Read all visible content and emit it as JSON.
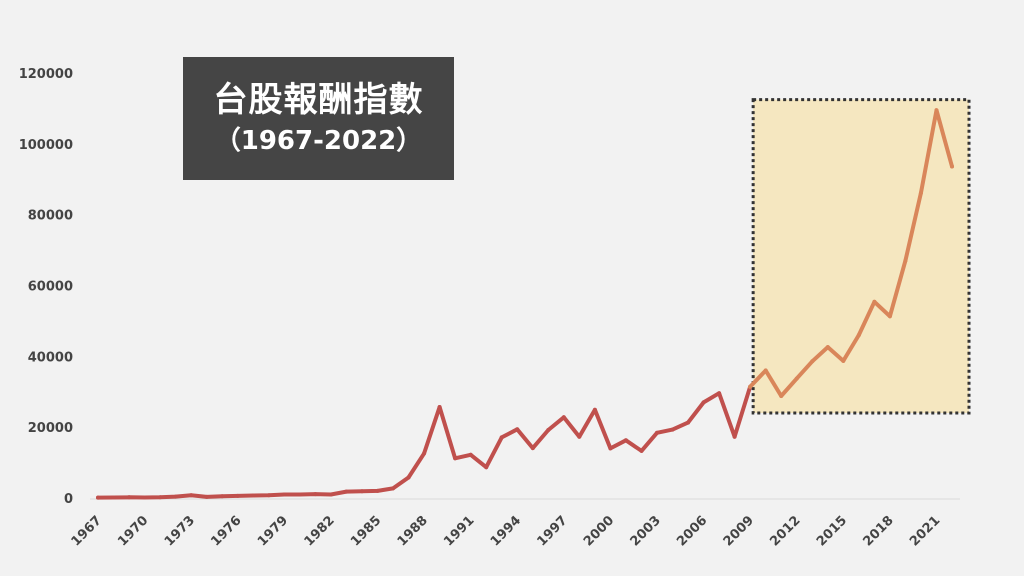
{
  "colors": {
    "background": "#f2f2f2",
    "title_box": "#454545",
    "line_main": "#c0504d",
    "line_highlight": "#d9865a",
    "highlight_fill": "#f5e7c0",
    "highlight_border": "#333333",
    "baseline": "#d9d9d9"
  },
  "chart_data": {
    "type": "line",
    "title": "台股報酬指數",
    "subtitle": "（1967-2022）",
    "xlabel": "",
    "ylabel": "",
    "ylim": [
      0,
      120000
    ],
    "yticks": [
      "0",
      "20000",
      "40000",
      "60000",
      "80000",
      "100000",
      "120000"
    ],
    "xticks": [
      "1967",
      "1970",
      "1973",
      "1976",
      "1979",
      "1982",
      "1985",
      "1988",
      "1991",
      "1994",
      "1997",
      "2000",
      "2003",
      "2006",
      "2009",
      "2012",
      "2015",
      "2018",
      "2021"
    ],
    "grid": false,
    "legend": "none",
    "highlight_range": {
      "x": [
        2009,
        2022
      ],
      "y": [
        24000,
        112500
      ]
    },
    "x": [
      1967,
      1968,
      1969,
      1970,
      1971,
      1972,
      1973,
      1974,
      1975,
      1976,
      1977,
      1978,
      1979,
      1980,
      1981,
      1982,
      1983,
      1984,
      1985,
      1986,
      1987,
      1988,
      1989,
      1990,
      1991,
      1992,
      1993,
      1994,
      1995,
      1996,
      1997,
      1998,
      1999,
      2000,
      2001,
      2002,
      2003,
      2004,
      2005,
      2006,
      2007,
      2008,
      2009,
      2010,
      2011,
      2012,
      2013,
      2014,
      2015,
      2016,
      2017,
      2018,
      2019,
      2020,
      2021,
      2022
    ],
    "series": [
      {
        "values": [
          100,
          150,
          200,
          150,
          200,
          400,
          800,
          300,
          500,
          600,
          700,
          800,
          1000,
          1000,
          1100,
          1000,
          1800,
          1900,
          2000,
          2700,
          5800,
          12600,
          25700,
          11200,
          12200,
          8700,
          17100,
          19400,
          14100,
          19200,
          22800,
          17300,
          24900,
          14000,
          16300,
          13300,
          18400,
          19300,
          21300,
          27000,
          29600,
          17300,
          31400,
          36000,
          28800,
          33700,
          38600,
          42600,
          38700,
          46000,
          55400,
          51300,
          67000,
          86100,
          109500,
          93600
        ]
      }
    ]
  }
}
